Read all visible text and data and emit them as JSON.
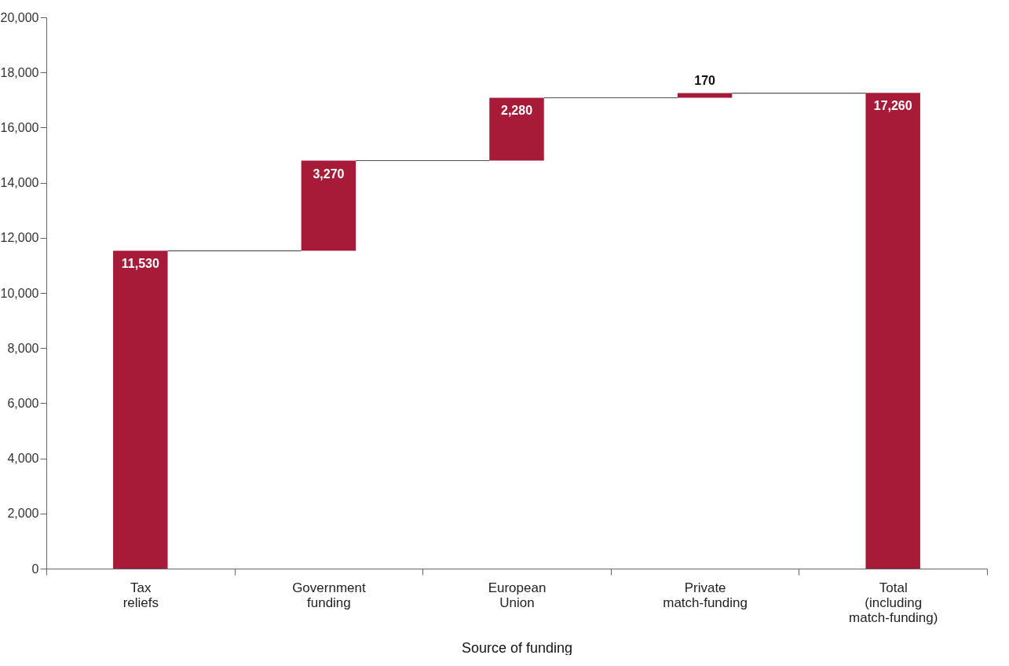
{
  "chart_data": {
    "type": "bar",
    "xlabel": "Source of funding",
    "categories": [
      "Tax\nreliefs",
      "Government\nfunding",
      "European\nUnion",
      "Private\nmatch-funding",
      "Total\n(including\nmatch-funding)"
    ],
    "values": [
      11530,
      3270,
      2280,
      170,
      17260
    ],
    "base": [
      0,
      11530,
      14800,
      17080,
      0
    ],
    "color": "#a81b38",
    "ylim": [
      0,
      20000
    ],
    "yticks": [
      0,
      {
        "value": 2000,
        "label": "2,000"
      },
      {
        "value": 4000,
        "label": "4,000"
      },
      {
        "value": 6000,
        "label": "6,000"
      },
      {
        "value": 8000,
        "label": "8,000"
      },
      {
        "value": 10000,
        "label": "10,000"
      },
      {
        "value": 12000,
        "label": "12,000"
      },
      {
        "value": 14000,
        "label": "14,000"
      },
      {
        "value": 16000,
        "label": "16,000"
      },
      {
        "value": 18000,
        "label": "18,000"
      },
      {
        "value": 20000,
        "label": "20,000"
      }
    ],
    "grid": false,
    "value_labels": [
      "11,530",
      "3,270",
      "2,280",
      "170",
      "17,260"
    ]
  }
}
